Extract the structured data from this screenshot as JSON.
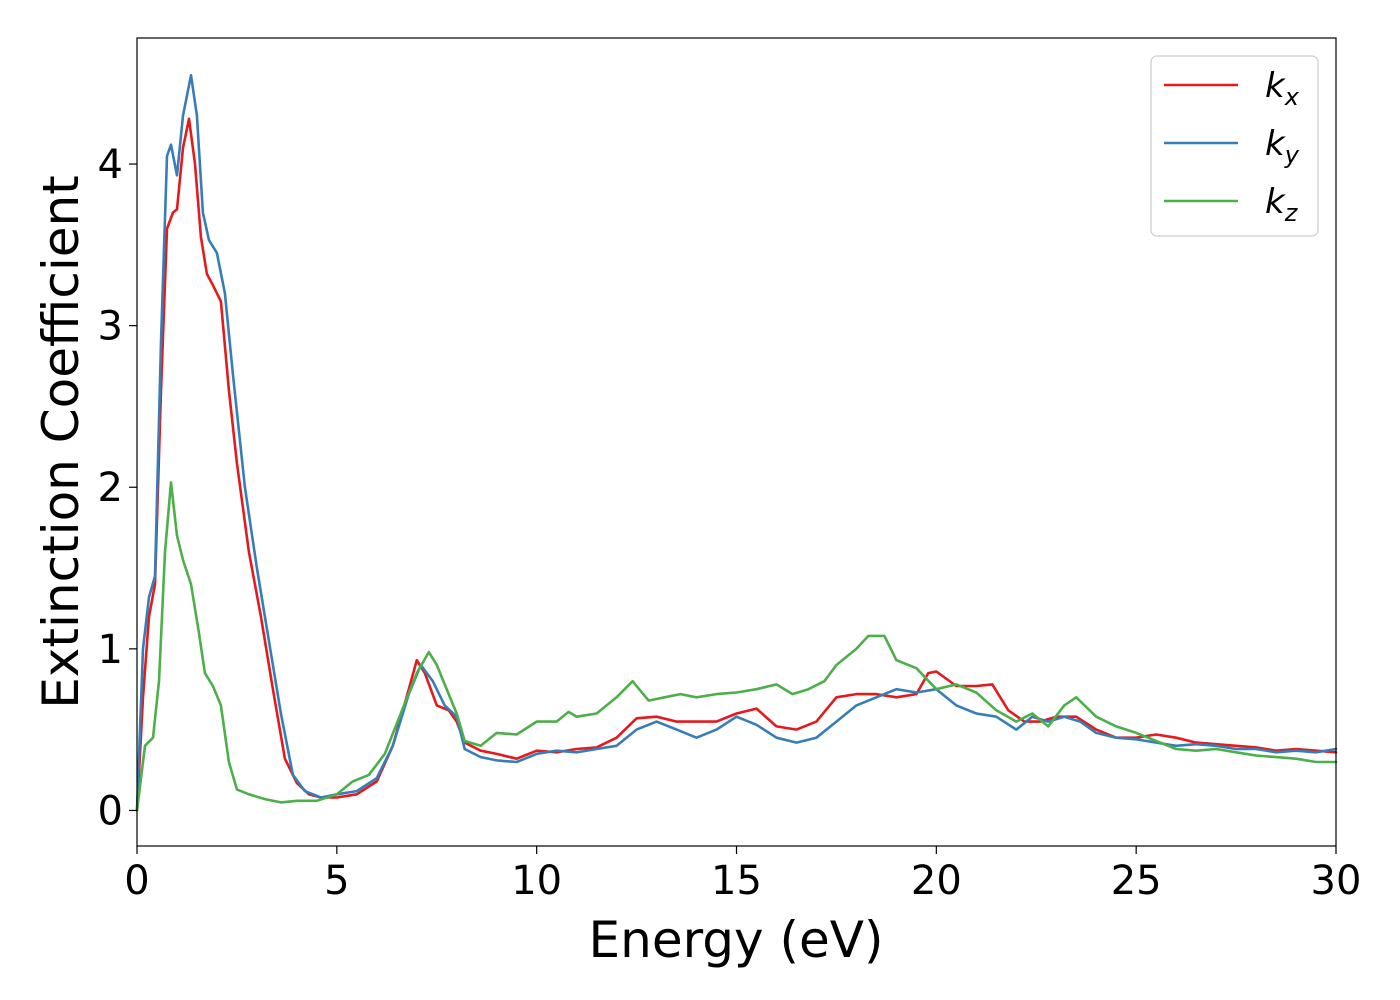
{
  "chart_data": {
    "type": "line",
    "title": "",
    "xlabel": "Energy (eV)",
    "ylabel": "Extinction Coefficient",
    "xlim": [
      0,
      30
    ],
    "ylim": [
      -0.22,
      4.78
    ],
    "xticks": [
      0,
      5,
      10,
      15,
      20,
      25,
      30
    ],
    "yticks": [
      0,
      1,
      2,
      3,
      4
    ],
    "grid": false,
    "legend_position": "top-right",
    "series": [
      {
        "name": "k_x",
        "label_main": "k",
        "label_sub": "x",
        "color": "#e41a1c",
        "points": [
          [
            0,
            0
          ],
          [
            0.15,
            0.7
          ],
          [
            0.3,
            1.2
          ],
          [
            0.45,
            1.4
          ],
          [
            0.6,
            2.6
          ],
          [
            0.75,
            3.6
          ],
          [
            0.9,
            3.7
          ],
          [
            1.0,
            3.72
          ],
          [
            1.15,
            4.1
          ],
          [
            1.3,
            4.28
          ],
          [
            1.45,
            4.0
          ],
          [
            1.6,
            3.55
          ],
          [
            1.75,
            3.32
          ],
          [
            1.9,
            3.25
          ],
          [
            2.1,
            3.15
          ],
          [
            2.3,
            2.6
          ],
          [
            2.5,
            2.15
          ],
          [
            2.8,
            1.6
          ],
          [
            3.1,
            1.2
          ],
          [
            3.4,
            0.75
          ],
          [
            3.7,
            0.32
          ],
          [
            4.0,
            0.17
          ],
          [
            4.3,
            0.1
          ],
          [
            4.6,
            0.08
          ],
          [
            5.0,
            0.08
          ],
          [
            5.5,
            0.1
          ],
          [
            6.0,
            0.18
          ],
          [
            6.4,
            0.4
          ],
          [
            6.8,
            0.75
          ],
          [
            7.0,
            0.93
          ],
          [
            7.2,
            0.85
          ],
          [
            7.5,
            0.65
          ],
          [
            7.8,
            0.62
          ],
          [
            8.0,
            0.55
          ],
          [
            8.2,
            0.42
          ],
          [
            8.6,
            0.37
          ],
          [
            9.0,
            0.35
          ],
          [
            9.5,
            0.32
          ],
          [
            10.0,
            0.37
          ],
          [
            10.5,
            0.36
          ],
          [
            11.0,
            0.38
          ],
          [
            11.5,
            0.39
          ],
          [
            12.0,
            0.45
          ],
          [
            12.5,
            0.57
          ],
          [
            13.0,
            0.58
          ],
          [
            13.5,
            0.55
          ],
          [
            14.0,
            0.55
          ],
          [
            14.5,
            0.55
          ],
          [
            15.0,
            0.6
          ],
          [
            15.5,
            0.63
          ],
          [
            16.0,
            0.52
          ],
          [
            16.5,
            0.5
          ],
          [
            17.0,
            0.55
          ],
          [
            17.5,
            0.7
          ],
          [
            18.0,
            0.72
          ],
          [
            18.5,
            0.72
          ],
          [
            19.0,
            0.7
          ],
          [
            19.5,
            0.72
          ],
          [
            19.8,
            0.85
          ],
          [
            20.0,
            0.86
          ],
          [
            20.5,
            0.77
          ],
          [
            21.0,
            0.77
          ],
          [
            21.4,
            0.78
          ],
          [
            21.8,
            0.62
          ],
          [
            22.2,
            0.55
          ],
          [
            22.6,
            0.55
          ],
          [
            23.0,
            0.58
          ],
          [
            23.5,
            0.58
          ],
          [
            24.0,
            0.5
          ],
          [
            24.5,
            0.45
          ],
          [
            25.0,
            0.45
          ],
          [
            25.5,
            0.47
          ],
          [
            26.0,
            0.45
          ],
          [
            26.5,
            0.42
          ],
          [
            27.0,
            0.41
          ],
          [
            27.5,
            0.4
          ],
          [
            28.0,
            0.39
          ],
          [
            28.5,
            0.37
          ],
          [
            29.0,
            0.38
          ],
          [
            29.5,
            0.37
          ],
          [
            30.0,
            0.36
          ]
        ]
      },
      {
        "name": "k_y",
        "label_main": "k",
        "label_sub": "y",
        "color": "#377eb8",
        "points": [
          [
            0,
            0
          ],
          [
            0.15,
            1.0
          ],
          [
            0.3,
            1.32
          ],
          [
            0.45,
            1.45
          ],
          [
            0.6,
            2.9
          ],
          [
            0.75,
            4.05
          ],
          [
            0.85,
            4.12
          ],
          [
            1.0,
            3.93
          ],
          [
            1.15,
            4.3
          ],
          [
            1.35,
            4.55
          ],
          [
            1.5,
            4.3
          ],
          [
            1.65,
            3.7
          ],
          [
            1.8,
            3.53
          ],
          [
            2.0,
            3.45
          ],
          [
            2.2,
            3.2
          ],
          [
            2.4,
            2.7
          ],
          [
            2.7,
            2.0
          ],
          [
            3.0,
            1.5
          ],
          [
            3.3,
            1.05
          ],
          [
            3.6,
            0.6
          ],
          [
            3.9,
            0.22
          ],
          [
            4.2,
            0.12
          ],
          [
            4.6,
            0.08
          ],
          [
            5.0,
            0.1
          ],
          [
            5.5,
            0.12
          ],
          [
            6.0,
            0.2
          ],
          [
            6.4,
            0.4
          ],
          [
            6.8,
            0.72
          ],
          [
            7.1,
            0.9
          ],
          [
            7.4,
            0.8
          ],
          [
            7.7,
            0.65
          ],
          [
            8.0,
            0.58
          ],
          [
            8.2,
            0.38
          ],
          [
            8.6,
            0.33
          ],
          [
            9.0,
            0.31
          ],
          [
            9.5,
            0.3
          ],
          [
            10.0,
            0.35
          ],
          [
            10.5,
            0.37
          ],
          [
            11.0,
            0.36
          ],
          [
            11.5,
            0.38
          ],
          [
            12.0,
            0.4
          ],
          [
            12.5,
            0.5
          ],
          [
            13.0,
            0.55
          ],
          [
            13.5,
            0.5
          ],
          [
            14.0,
            0.45
          ],
          [
            14.5,
            0.5
          ],
          [
            15.0,
            0.58
          ],
          [
            15.5,
            0.53
          ],
          [
            16.0,
            0.45
          ],
          [
            16.5,
            0.42
          ],
          [
            17.0,
            0.45
          ],
          [
            17.5,
            0.55
          ],
          [
            18.0,
            0.65
          ],
          [
            18.5,
            0.7
          ],
          [
            19.0,
            0.75
          ],
          [
            19.5,
            0.73
          ],
          [
            20.0,
            0.75
          ],
          [
            20.5,
            0.65
          ],
          [
            21.0,
            0.6
          ],
          [
            21.5,
            0.58
          ],
          [
            22.0,
            0.5
          ],
          [
            22.4,
            0.58
          ],
          [
            22.8,
            0.55
          ],
          [
            23.2,
            0.58
          ],
          [
            23.6,
            0.55
          ],
          [
            24.0,
            0.48
          ],
          [
            24.5,
            0.45
          ],
          [
            25.0,
            0.44
          ],
          [
            25.5,
            0.42
          ],
          [
            26.0,
            0.4
          ],
          [
            26.5,
            0.41
          ],
          [
            27.0,
            0.4
          ],
          [
            27.5,
            0.38
          ],
          [
            28.0,
            0.38
          ],
          [
            28.5,
            0.36
          ],
          [
            29.0,
            0.37
          ],
          [
            29.5,
            0.36
          ],
          [
            30.0,
            0.38
          ]
        ]
      },
      {
        "name": "k_z",
        "label_main": "k",
        "label_sub": "z",
        "color": "#4daf4a",
        "points": [
          [
            0,
            0
          ],
          [
            0.2,
            0.4
          ],
          [
            0.4,
            0.45
          ],
          [
            0.55,
            0.8
          ],
          [
            0.7,
            1.6
          ],
          [
            0.85,
            2.03
          ],
          [
            1.0,
            1.7
          ],
          [
            1.15,
            1.55
          ],
          [
            1.35,
            1.4
          ],
          [
            1.55,
            1.1
          ],
          [
            1.7,
            0.85
          ],
          [
            1.9,
            0.77
          ],
          [
            2.1,
            0.65
          ],
          [
            2.3,
            0.3
          ],
          [
            2.5,
            0.13
          ],
          [
            2.8,
            0.1
          ],
          [
            3.2,
            0.07
          ],
          [
            3.6,
            0.05
          ],
          [
            4.0,
            0.06
          ],
          [
            4.5,
            0.06
          ],
          [
            5.0,
            0.1
          ],
          [
            5.4,
            0.18
          ],
          [
            5.8,
            0.22
          ],
          [
            6.2,
            0.35
          ],
          [
            6.6,
            0.6
          ],
          [
            7.0,
            0.85
          ],
          [
            7.3,
            0.98
          ],
          [
            7.5,
            0.9
          ],
          [
            7.8,
            0.72
          ],
          [
            8.0,
            0.6
          ],
          [
            8.2,
            0.43
          ],
          [
            8.6,
            0.4
          ],
          [
            9.0,
            0.48
          ],
          [
            9.5,
            0.47
          ],
          [
            10.0,
            0.55
          ],
          [
            10.5,
            0.55
          ],
          [
            10.8,
            0.61
          ],
          [
            11.0,
            0.58
          ],
          [
            11.5,
            0.6
          ],
          [
            12.0,
            0.7
          ],
          [
            12.4,
            0.8
          ],
          [
            12.8,
            0.68
          ],
          [
            13.2,
            0.7
          ],
          [
            13.6,
            0.72
          ],
          [
            14.0,
            0.7
          ],
          [
            14.5,
            0.72
          ],
          [
            15.0,
            0.73
          ],
          [
            15.5,
            0.75
          ],
          [
            16.0,
            0.78
          ],
          [
            16.4,
            0.72
          ],
          [
            16.8,
            0.75
          ],
          [
            17.2,
            0.8
          ],
          [
            17.5,
            0.9
          ],
          [
            18.0,
            1.0
          ],
          [
            18.3,
            1.08
          ],
          [
            18.7,
            1.08
          ],
          [
            19.0,
            0.93
          ],
          [
            19.5,
            0.88
          ],
          [
            20.0,
            0.75
          ],
          [
            20.5,
            0.78
          ],
          [
            21.0,
            0.73
          ],
          [
            21.5,
            0.62
          ],
          [
            22.0,
            0.55
          ],
          [
            22.4,
            0.6
          ],
          [
            22.8,
            0.52
          ],
          [
            23.2,
            0.65
          ],
          [
            23.5,
            0.7
          ],
          [
            24.0,
            0.58
          ],
          [
            24.5,
            0.52
          ],
          [
            25.0,
            0.48
          ],
          [
            25.5,
            0.43
          ],
          [
            26.0,
            0.38
          ],
          [
            26.5,
            0.37
          ],
          [
            27.0,
            0.38
          ],
          [
            27.5,
            0.36
          ],
          [
            28.0,
            0.34
          ],
          [
            28.5,
            0.33
          ],
          [
            29.0,
            0.32
          ],
          [
            29.5,
            0.3
          ],
          [
            30.0,
            0.3
          ]
        ]
      }
    ]
  }
}
